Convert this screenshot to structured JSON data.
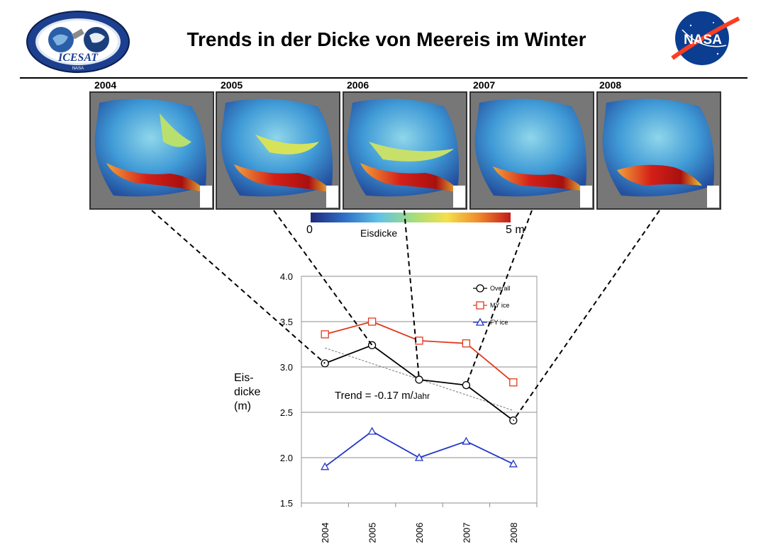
{
  "header": {
    "title": "Trends in der Dicke von Meereis im Winter",
    "left_logo": {
      "icon": "icesat-mission-logo",
      "ring_text": "ICE, CLOUD, & LAND ELEVATION SATELLITE",
      "name": "ICESAT",
      "sub_text": "NASA"
    },
    "right_logo": {
      "icon": "nasa-meatball-logo",
      "text": "NASA"
    }
  },
  "maps": {
    "years": [
      "2004",
      "2005",
      "2006",
      "2007",
      "2008"
    ]
  },
  "colorbar": {
    "min_label": "0",
    "max_label": "5 m",
    "label": "Eisdicke",
    "colors": [
      "#1f2a7a",
      "#2f6fc7",
      "#5fc3e6",
      "#a7de7a",
      "#f4e04a",
      "#f08a2c",
      "#c41a1a"
    ]
  },
  "y_axis_label": [
    "Eis-",
    "dicke",
    "(m)"
  ],
  "chart_data": {
    "type": "line",
    "x": [
      "2004",
      "2005",
      "2006",
      "2007",
      "2008"
    ],
    "ylim": [
      1.5,
      4.0
    ],
    "yticks": [
      "1.5",
      "2.0",
      "2.5",
      "3.0",
      "3.5",
      "4.0"
    ],
    "grid": true,
    "legend_position": "top-right",
    "series": [
      {
        "name": "Overall",
        "values": [
          3.04,
          3.24,
          2.86,
          2.8,
          2.41
        ],
        "color": "#000000",
        "marker": "circle"
      },
      {
        "name": "MY ice",
        "values": [
          3.36,
          3.5,
          3.29,
          3.26,
          2.83
        ],
        "color": "#e03a1c",
        "marker": "square"
      },
      {
        "name": "FY ice",
        "values": [
          1.9,
          2.29,
          2.0,
          2.18,
          1.93
        ],
        "color": "#2236c8",
        "marker": "triangle"
      }
    ],
    "trend": {
      "label": "Trend = -0.17 m/",
      "unit": "Jahr",
      "start": 3.21,
      "end": 2.52,
      "color": "#777777"
    }
  }
}
